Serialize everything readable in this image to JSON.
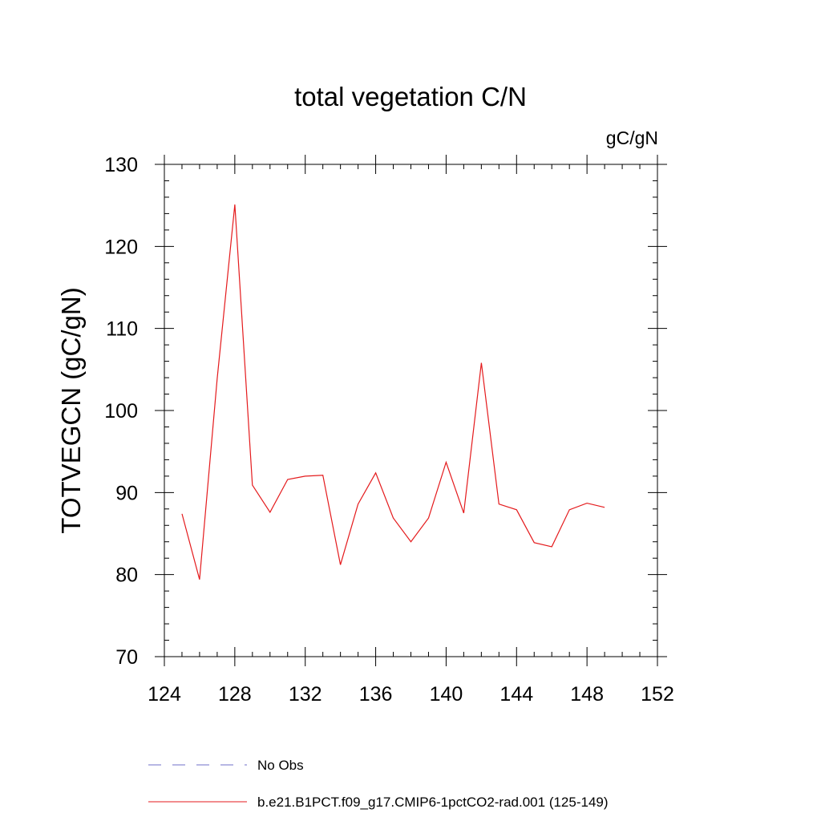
{
  "chart_data": {
    "type": "line",
    "title": "total vegetation C/N",
    "units_label": "gC/gN",
    "ylabel": "TOTVEGCN  (gC/gN)",
    "xlabel": "",
    "xlim": [
      124,
      152
    ],
    "ylim": [
      70,
      130
    ],
    "x_ticks": [
      124,
      128,
      132,
      136,
      140,
      144,
      148,
      152
    ],
    "y_ticks": [
      70,
      80,
      90,
      100,
      110,
      120,
      130
    ],
    "grid": false,
    "legend_placement": "bottom",
    "series": [
      {
        "name": "b.e21.B1PCT.f09_g17.CMIP6-1pctCO2-rad.001 (125-149)",
        "color": "#e41a1c",
        "x": [
          125,
          126,
          127,
          128,
          129,
          130,
          131,
          132,
          133,
          134,
          135,
          136,
          137,
          138,
          139,
          140,
          141,
          142,
          143,
          144,
          145,
          146,
          147,
          148,
          149
        ],
        "values": [
          87.4,
          79.4,
          103.9,
          125.1,
          90.9,
          87.6,
          91.6,
          92.0,
          92.1,
          81.2,
          88.6,
          92.4,
          86.9,
          84.0,
          86.9,
          93.7,
          87.5,
          105.8,
          88.6,
          87.9,
          83.9,
          83.4,
          87.9,
          88.7,
          88.2
        ]
      }
    ],
    "legend": [
      {
        "label": "No Obs",
        "color": "#6f6fc9",
        "dash": true
      },
      {
        "label": "b.e21.B1PCT.f09_g17.CMIP6-1pctCO2-rad.001 (125-149)",
        "color": "#e41a1c",
        "dash": false
      }
    ]
  }
}
